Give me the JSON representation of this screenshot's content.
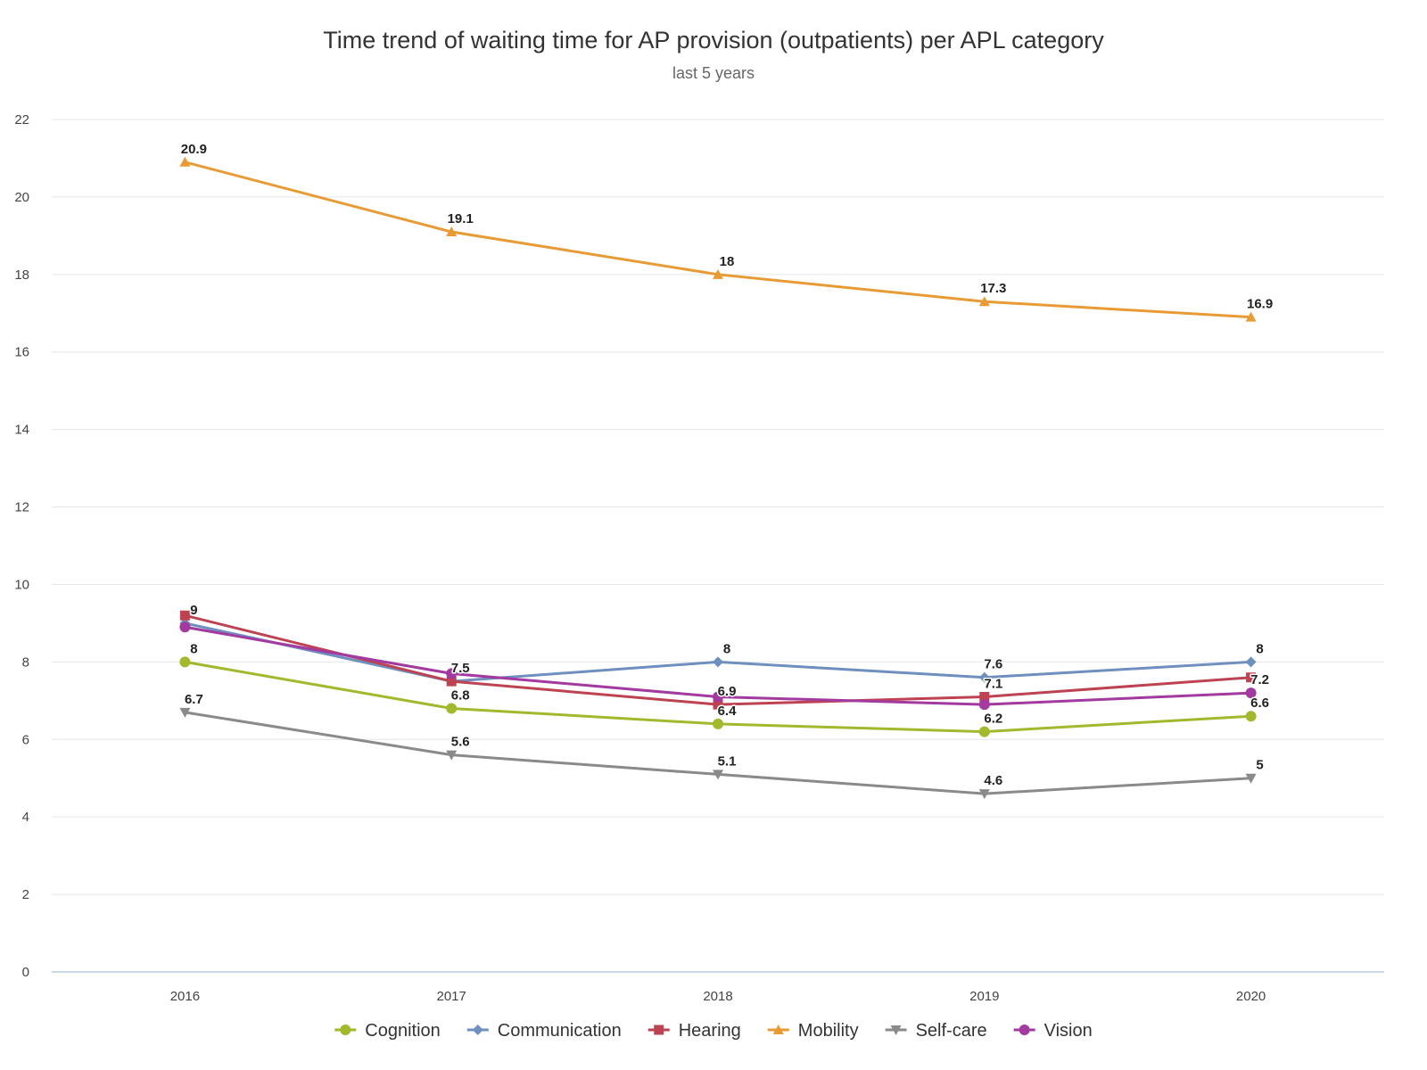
{
  "chart_data": {
    "type": "line",
    "title": "Time trend of waiting time for AP provision (outpatients) per APL category",
    "subtitle": "last 5 years",
    "xlabel": "",
    "ylabel": "",
    "x": [
      "2016",
      "2017",
      "2018",
      "2019",
      "2020"
    ],
    "ylim": [
      0,
      22
    ],
    "yticks": [
      0,
      2,
      4,
      6,
      8,
      10,
      12,
      14,
      16,
      18,
      20,
      22
    ],
    "grid": true,
    "legend_position": "bottom",
    "series": [
      {
        "name": "Cognition",
        "color": "#a2b92d",
        "marker": "circle",
        "values": [
          8,
          6.8,
          6.4,
          6.2,
          6.6
        ]
      },
      {
        "name": "Communication",
        "color": "#6f8fbf",
        "marker": "diamond",
        "values": [
          9,
          7.5,
          8,
          7.6,
          8
        ]
      },
      {
        "name": "Hearing",
        "color": "#bd4252",
        "marker": "square",
        "values": [
          9.2,
          7.5,
          6.9,
          7.1,
          7.6
        ]
      },
      {
        "name": "Mobility",
        "color": "#e89b34",
        "marker": "triangle",
        "values": [
          20.9,
          19.1,
          18,
          17.3,
          16.9
        ]
      },
      {
        "name": "Self-care",
        "color": "#8a8a8a",
        "marker": "triangle-down",
        "values": [
          6.7,
          5.6,
          5.1,
          4.6,
          5
        ]
      },
      {
        "name": "Vision",
        "color": "#a23aa0",
        "marker": "circle",
        "values": [
          8.9,
          7.7,
          7.1,
          6.9,
          7.2
        ]
      }
    ],
    "data_labels": [
      {
        "series": "Cognition",
        "index": 0,
        "text": "8"
      },
      {
        "series": "Cognition",
        "index": 1,
        "text": "6.8"
      },
      {
        "series": "Cognition",
        "index": 2,
        "text": "6.4"
      },
      {
        "series": "Cognition",
        "index": 3,
        "text": "6.2"
      },
      {
        "series": "Cognition",
        "index": 4,
        "text": "6.6"
      },
      {
        "series": "Communication",
        "index": 0,
        "text": "9"
      },
      {
        "series": "Communication",
        "index": 1,
        "text": "7.5"
      },
      {
        "series": "Communication",
        "index": 2,
        "text": "8"
      },
      {
        "series": "Communication",
        "index": 3,
        "text": "7.6"
      },
      {
        "series": "Communication",
        "index": 4,
        "text": "8"
      },
      {
        "series": "Hearing",
        "index": 2,
        "text": "6.9"
      },
      {
        "series": "Hearing",
        "index": 3,
        "text": "7.1"
      },
      {
        "series": "Vision",
        "index": 4,
        "text": "7.2"
      },
      {
        "series": "Mobility",
        "index": 0,
        "text": "20.9"
      },
      {
        "series": "Mobility",
        "index": 1,
        "text": "19.1"
      },
      {
        "series": "Mobility",
        "index": 2,
        "text": "18"
      },
      {
        "series": "Mobility",
        "index": 3,
        "text": "17.3"
      },
      {
        "series": "Mobility",
        "index": 4,
        "text": "16.9"
      },
      {
        "series": "Self-care",
        "index": 0,
        "text": "6.7"
      },
      {
        "series": "Self-care",
        "index": 1,
        "text": "5.6"
      },
      {
        "series": "Self-care",
        "index": 2,
        "text": "5.1"
      },
      {
        "series": "Self-care",
        "index": 3,
        "text": "4.6"
      },
      {
        "series": "Self-care",
        "index": 4,
        "text": "5"
      }
    ]
  }
}
